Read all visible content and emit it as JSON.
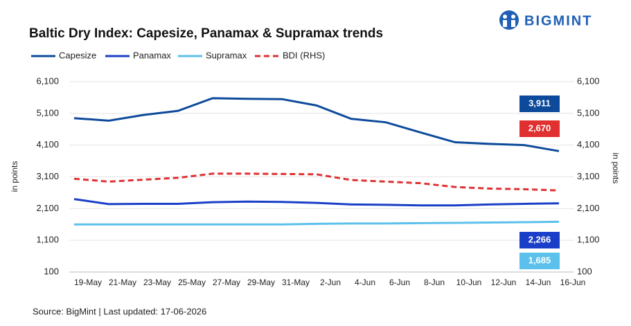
{
  "chart_data": {
    "type": "line",
    "title": "Baltic Dry Index: Capesize, Panamax & Supramax trends",
    "logo": "BIGMINT",
    "source": "Source: BigMint | Last updated: 17-06-2026",
    "y_label": "in points",
    "y2_label": "in points",
    "categories": [
      "19-May",
      "21-May",
      "23-May",
      "25-May",
      "27-May",
      "29-May",
      "31-May",
      "2-Jun",
      "4-Jun",
      "6-Jun",
      "8-Jun",
      "10-Jun",
      "12-Jun",
      "14-Jun",
      "16-Jun"
    ],
    "ylim": [
      100,
      6100
    ],
    "yticks": [
      {
        "value": 6100,
        "label": "6,100"
      },
      {
        "value": 5100,
        "label": "5,100"
      },
      {
        "value": 4100,
        "label": "4,100"
      },
      {
        "value": 3100,
        "label": "3,100"
      },
      {
        "value": 2100,
        "label": "2,100"
      },
      {
        "value": 1100,
        "label": "1,100"
      },
      100
    ],
    "y2lim": [
      100,
      6100
    ],
    "y2ticks": [
      {
        "value": 6100,
        "label": "6,100"
      },
      {
        "value": 5100,
        "label": "5,100"
      },
      {
        "value": 4100,
        "label": "4,100"
      },
      {
        "value": 3100,
        "label": "3,100"
      },
      {
        "value": 2100,
        "label": "2,100"
      },
      {
        "value": 1100,
        "label": "1,100"
      },
      100
    ],
    "grid": true,
    "series": [
      {
        "name": "Capesize",
        "color": "#0d4a9b",
        "line_style": "solid",
        "values": [
          4950,
          4870,
          5050,
          5180,
          5580,
          5560,
          5550,
          5350,
          4930,
          4820,
          4500,
          4190,
          4140,
          4100,
          3911
        ],
        "value_labels": [
          null,
          null,
          null,
          null,
          null,
          null,
          null,
          null,
          null,
          null,
          null,
          null,
          null,
          null,
          "3,911"
        ]
      },
      {
        "name": "Panamax",
        "color": "#1a3ec8",
        "line_style": "solid",
        "values": [
          2400,
          2240,
          2250,
          2250,
          2300,
          2320,
          2310,
          2280,
          2230,
          2220,
          2200,
          2200,
          2230,
          2250,
          2266
        ],
        "value_labels": [
          null,
          null,
          null,
          null,
          null,
          null,
          null,
          null,
          null,
          null,
          null,
          null,
          null,
          null,
          "2,266"
        ]
      },
      {
        "name": "Supramax",
        "color": "#5bc0eb",
        "line_style": "solid",
        "values": [
          1600,
          1600,
          1600,
          1600,
          1600,
          1600,
          1600,
          1620,
          1630,
          1630,
          1640,
          1650,
          1660,
          1670,
          1685
        ],
        "value_labels": [
          null,
          null,
          null,
          null,
          null,
          null,
          null,
          null,
          null,
          null,
          null,
          null,
          null,
          null,
          "1,685"
        ]
      },
      {
        "name": "BDI (RHS)",
        "color": "#e03030",
        "line_style": "dashed",
        "axis": "y2",
        "values": [
          3040,
          2950,
          3010,
          3070,
          3200,
          3200,
          3190,
          3180,
          3000,
          2950,
          2900,
          2780,
          2730,
          2710,
          2670
        ],
        "value_labels": [
          null,
          null,
          null,
          null,
          null,
          null,
          null,
          null,
          null,
          null,
          null,
          null,
          null,
          null,
          "2,670"
        ]
      }
    ]
  }
}
